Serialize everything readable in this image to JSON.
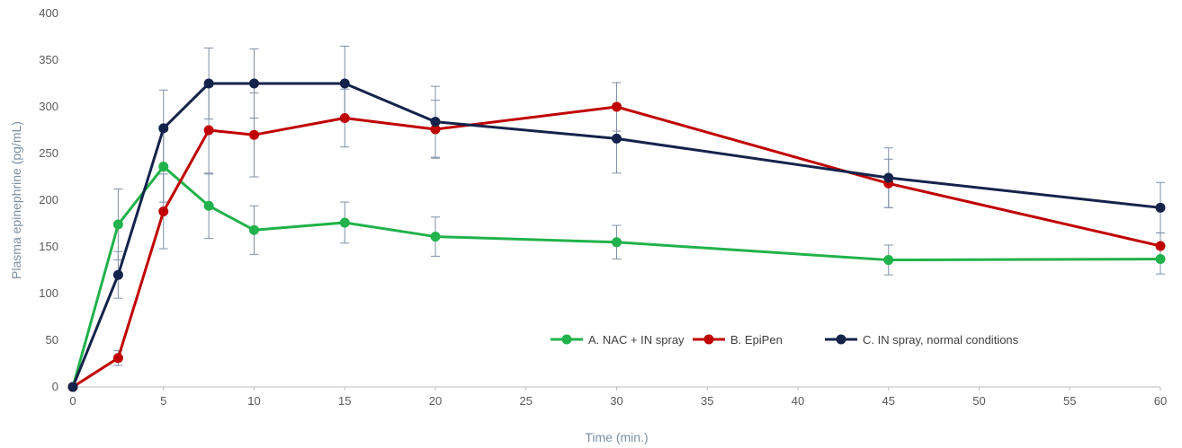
{
  "chart_data": {
    "type": "line",
    "xlabel": "Time (min.)",
    "ylabel": "Plasma epinephrine (pg/mL)",
    "xlim": [
      0,
      60
    ],
    "ylim": [
      0,
      400
    ],
    "xticks": [
      0,
      5,
      10,
      15,
      20,
      25,
      30,
      35,
      40,
      45,
      50,
      55,
      60
    ],
    "yticks": [
      0,
      50,
      100,
      150,
      200,
      250,
      300,
      350,
      400
    ],
    "grid": false,
    "legend_position": "bottom-right",
    "series": [
      {
        "name": "A. NAC + IN spray",
        "color": "#21b24b",
        "x": [
          0,
          2.5,
          5,
          7.5,
          10,
          15,
          20,
          30,
          45,
          60
        ],
        "y": [
          0,
          174,
          236,
          194,
          168,
          176,
          161,
          155,
          136,
          137
        ],
        "err": [
          0,
          38,
          38,
          35,
          26,
          22,
          21,
          18,
          16,
          16
        ]
      },
      {
        "name": "B. EpiPen",
        "color": "#c00000",
        "x": [
          0,
          2.5,
          5,
          7.5,
          10,
          15,
          20,
          30,
          45,
          60
        ],
        "y": [
          0,
          31,
          188,
          275,
          270,
          288,
          276,
          300,
          218,
          151
        ],
        "err": [
          0,
          8,
          40,
          47,
          45,
          31,
          31,
          26,
          26,
          14
        ]
      },
      {
        "name": "C. IN spray, normal conditions",
        "color": "#14234b",
        "x": [
          0,
          2.5,
          5,
          7.5,
          10,
          15,
          20,
          30,
          45,
          60
        ],
        "y": [
          0,
          120,
          277,
          325,
          325,
          325,
          284,
          266,
          224,
          192
        ],
        "err": [
          0,
          25,
          41,
          38,
          37,
          40,
          38,
          37,
          32,
          27
        ]
      }
    ]
  }
}
